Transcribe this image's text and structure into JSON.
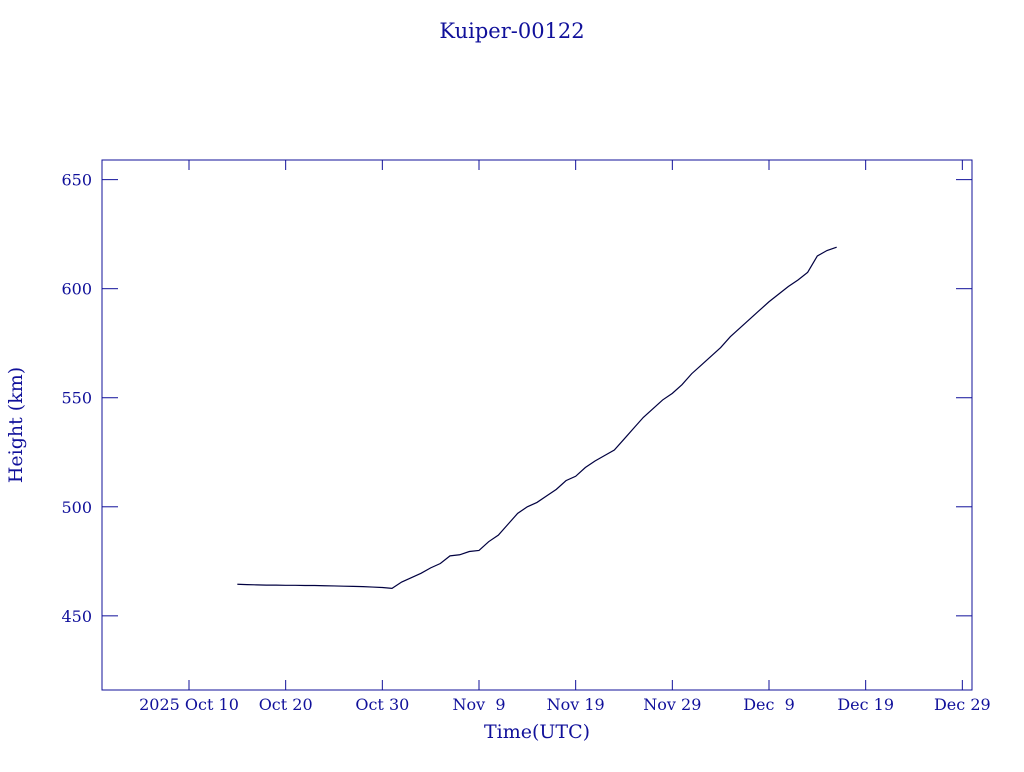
{
  "chart_data": {
    "type": "line",
    "title": "Kuiper-00122",
    "x_label": "Time(UTC)",
    "y_label": "Height (km)",
    "x": [
      "2025-10-15",
      "2025-10-16",
      "2025-10-17",
      "2025-10-18",
      "2025-10-19",
      "2025-10-20",
      "2025-10-21",
      "2025-10-22",
      "2025-10-23",
      "2025-10-24",
      "2025-10-25",
      "2025-10-26",
      "2025-10-27",
      "2025-10-28",
      "2025-10-29",
      "2025-10-30",
      "2025-10-31",
      "2025-11-01",
      "2025-11-02",
      "2025-11-03",
      "2025-11-04",
      "2025-11-05",
      "2025-11-06",
      "2025-11-07",
      "2025-11-08",
      "2025-11-09",
      "2025-11-10",
      "2025-11-11",
      "2025-11-12",
      "2025-11-13",
      "2025-11-14",
      "2025-11-15",
      "2025-11-16",
      "2025-11-17",
      "2025-11-18",
      "2025-11-19",
      "2025-11-20",
      "2025-11-21",
      "2025-11-22",
      "2025-11-23",
      "2025-11-24",
      "2025-11-25",
      "2025-11-26",
      "2025-11-27",
      "2025-11-28",
      "2025-11-29",
      "2025-11-30",
      "2025-12-01",
      "2025-12-02",
      "2025-12-03",
      "2025-12-04",
      "2025-12-05",
      "2025-12-06",
      "2025-12-07",
      "2025-12-08",
      "2025-12-09",
      "2025-12-10",
      "2025-12-11",
      "2025-12-12",
      "2025-12-13",
      "2025-12-14",
      "2025-12-15",
      "2025-12-16"
    ],
    "series": [
      {
        "color": "#000040",
        "values": [
          464.5,
          464.3,
          464.2,
          464.1,
          464.1,
          464.0,
          464.0,
          463.9,
          463.9,
          463.8,
          463.7,
          463.6,
          463.5,
          463.4,
          463.2,
          463.0,
          462.6,
          465.5,
          467.5,
          469.5,
          472,
          474,
          477.5,
          478,
          479.5,
          480,
          484,
          487,
          492,
          497,
          500,
          502,
          505,
          508,
          512,
          514,
          518,
          521,
          523.5,
          526,
          531,
          536,
          541,
          545,
          549,
          552,
          556,
          561,
          565,
          569,
          573,
          578,
          582,
          586,
          590,
          594,
          597.5,
          601,
          604,
          607.5,
          615,
          617.5,
          619
        ]
      }
    ],
    "xlim": [
      "2025-10-01",
      "2025-12-30"
    ],
    "xticks": [
      {
        "value": "2025-10-10",
        "label": "2025 Oct 10"
      },
      {
        "value": "2025-10-20",
        "label": "Oct 20"
      },
      {
        "value": "2025-10-30",
        "label": "Oct 30"
      },
      {
        "value": "2025-11-09",
        "label": "Nov  9"
      },
      {
        "value": "2025-11-19",
        "label": "Nov 19"
      },
      {
        "value": "2025-11-29",
        "label": "Nov 29"
      },
      {
        "value": "2025-12-09",
        "label": "Dec  9"
      },
      {
        "value": "2025-12-19",
        "label": "Dec 19"
      },
      {
        "value": "2025-12-29",
        "label": "Dec 29"
      }
    ],
    "ylim": [
      416,
      659
    ],
    "yticks": [
      450,
      500,
      550,
      600,
      650
    ]
  }
}
